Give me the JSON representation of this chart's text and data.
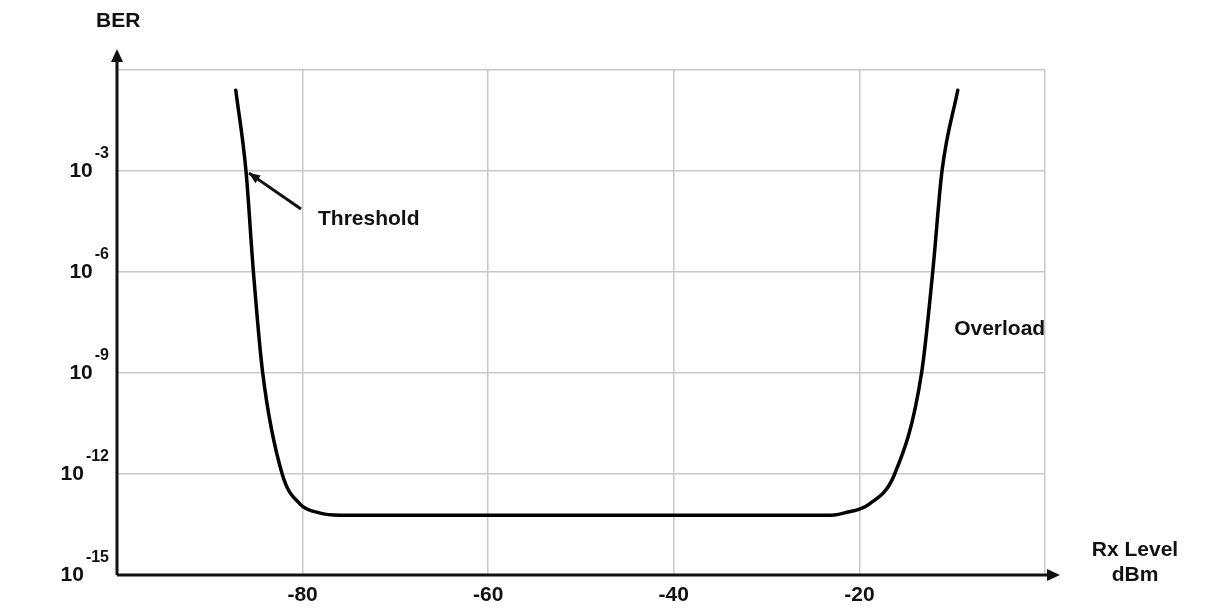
{
  "chart_data": {
    "type": "line",
    "ylabel": "BER",
    "xlabel": "Rx Level dBm",
    "x": [
      -87.2,
      -86.1,
      -85.3,
      -84.3,
      -82.2,
      -80.3,
      -78.2,
      -76,
      -60,
      -40,
      -23,
      -21.6,
      -18.9,
      -16.2,
      -13.3,
      -12.1,
      -11.1,
      -9.4
    ],
    "series": [
      {
        "color": "#000000",
        "values": [
          0.25,
          0.001,
          1e-06,
          1e-09,
          1e-12,
          1.3e-13,
          7e-14,
          6e-14,
          6e-14,
          6e-14,
          6e-14,
          7e-14,
          1.3e-13,
          1e-12,
          1e-09,
          1e-06,
          0.001,
          0.25
        ]
      }
    ],
    "log": "y",
    "xlim": [
      -100,
      0
    ],
    "ylim": [
      1e-15,
      1
    ],
    "xticks": [
      -80,
      -60,
      -40,
      -20,
      {
        "value": 0,
        "label": null
      }
    ],
    "yticks": [
      {
        "value": 1e-15,
        "label": "10$^{-15}$"
      },
      {
        "value": 1e-12,
        "label": "10$^{-12}$"
      },
      {
        "value": 1e-09,
        "label": "10$^{-9}$"
      },
      {
        "value": 1e-06,
        "label": "10$^{-6}$"
      },
      {
        "value": 0.001,
        "label": "10$^{-3}$"
      },
      {
        "value": 1,
        "label": null
      }
    ],
    "grid": true,
    "legend": false,
    "marker": "none",
    "line_style": "solid",
    "annotations": [
      {
        "text": "Threshold",
        "x": -86.1,
        "y": 0.001
      },
      {
        "text": "Overload",
        "x": -12.7,
        "y": 2e-08
      }
    ]
  }
}
